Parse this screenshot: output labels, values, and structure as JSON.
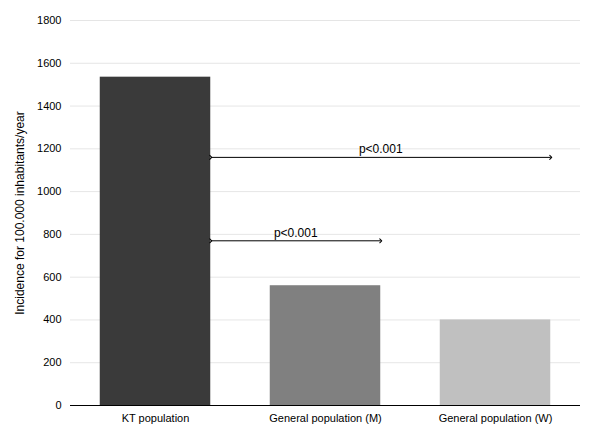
{
  "chart_data": {
    "type": "bar",
    "categories": [
      "KT population",
      "General population (M)",
      "General population (W)"
    ],
    "values": [
      1535,
      560,
      400
    ],
    "colors": [
      "#3a3a3a",
      "#808080",
      "#c0c0c0"
    ],
    "ylabel": "Incidence for 100.000 inhabitants/year",
    "ylim": [
      0,
      1800
    ],
    "yticks": [
      0,
      200,
      400,
      600,
      800,
      1000,
      1200,
      1400,
      1600,
      1800
    ],
    "grid": true,
    "annotations": [
      {
        "text": "p<0.001",
        "from": "KT population",
        "to": "General population (M)",
        "y": 770,
        "text_y": 790
      },
      {
        "text": "p<0.001",
        "from": "KT population",
        "to": "General population (W)",
        "y": 1160,
        "text_y": 1180
      }
    ]
  }
}
